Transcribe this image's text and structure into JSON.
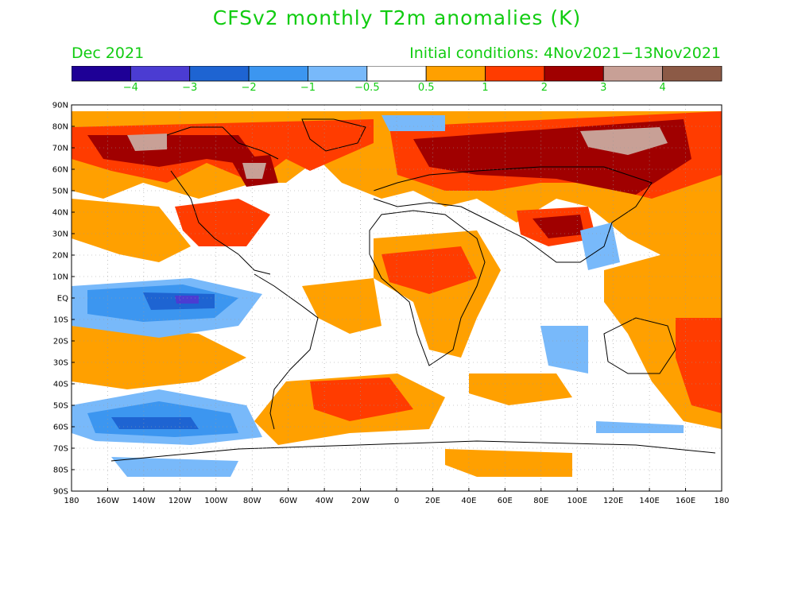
{
  "header": {
    "title": "CFSv2 monthly T2m anomalies (K)",
    "valid": "Dec 2021",
    "initial": "Initial conditions: 4Nov2021−13Nov2021"
  },
  "legend": {
    "colors": [
      "#1e0096",
      "#4b3cd2",
      "#1e64d2",
      "#3c96f0",
      "#78b9fa",
      "#ffffff",
      "#ffa000",
      "#ff3c00",
      "#a00000",
      "#c8a096",
      "#8c5a46"
    ],
    "labels": [
      "−4",
      "−3",
      "−2",
      "−1",
      "−0.5",
      "0.5",
      "1",
      "2",
      "3",
      "4"
    ]
  },
  "axes": {
    "lat_labels": [
      "90N",
      "80N",
      "70N",
      "60N",
      "50N",
      "40N",
      "30N",
      "20N",
      "10N",
      "EQ",
      "10S",
      "20S",
      "30S",
      "40S",
      "50S",
      "60S",
      "70S",
      "80S",
      "90S"
    ],
    "lon_labels": [
      "180",
      "160W",
      "140W",
      "120W",
      "100W",
      "80W",
      "60W",
      "40W",
      "20W",
      "0",
      "20E",
      "40E",
      "60E",
      "80E",
      "100E",
      "120E",
      "140E",
      "160E",
      "180"
    ]
  },
  "map_data": {
    "type": "filled-contour-map",
    "variable": "T2m anomaly",
    "units": "K",
    "lon_range": [
      -180,
      180
    ],
    "lat_range": [
      -90,
      90
    ],
    "gridlines": "dotted",
    "regions": [
      {
        "name": "Arctic / northern Canada warm",
        "level": 2
      },
      {
        "name": "Siberia strong warm",
        "level": 3
      },
      {
        "name": "Eastern North America warm",
        "level": 1
      },
      {
        "name": "Equatorial east Pacific cold",
        "level": -1
      },
      {
        "name": "Southern Ocean south of Pacific cold",
        "level": -2
      },
      {
        "name": "North Africa warm",
        "level": 1
      },
      {
        "name": "South Atlantic warm",
        "level": 2
      },
      {
        "name": "Tibetan Plateau mixed",
        "level": 3
      }
    ]
  }
}
